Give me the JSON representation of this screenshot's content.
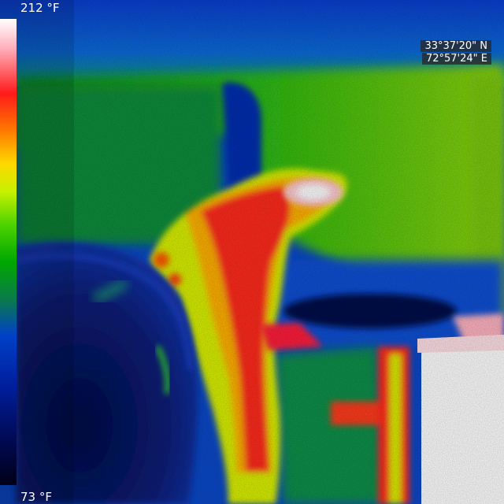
{
  "thermal_view": {
    "image": "thermal camera frame of a hand reaching past a dark chair back toward a hot white surface",
    "palette": [
      "#ffffff",
      "#ff1a1a",
      "#ffd800",
      "#4fd400",
      "#00a800",
      "#0040c8",
      "#000a55"
    ]
  },
  "temperature_scale": {
    "max_label": "212 °F",
    "min_label": "73 °F"
  },
  "gps_overlay": {
    "latitude": "33°37'20\" N",
    "longitude": "72°57'24\" E"
  }
}
